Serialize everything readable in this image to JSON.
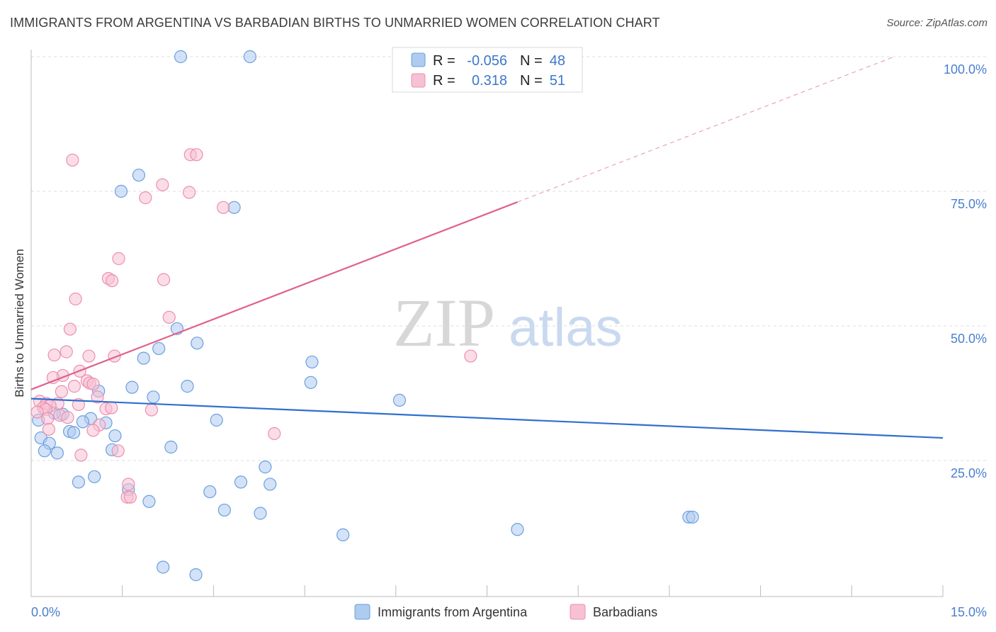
{
  "header": {
    "title": "IMMIGRANTS FROM ARGENTINA VS BARBADIAN BIRTHS TO UNMARRIED WOMEN CORRELATION CHART",
    "source": "Source: ZipAtlas.com"
  },
  "watermark": {
    "zip": "ZIP",
    "atlas": "atlas"
  },
  "colors": {
    "blue_fill": "#aecbf0",
    "blue_stroke": "#6a9fe0",
    "blue_line": "#2f6fcf",
    "pink_fill": "#f7c1d3",
    "pink_stroke": "#ec8fae",
    "pink_line": "#e0618d",
    "axis_text": "#4a7fcf"
  },
  "legend_box": {
    "rows": [
      {
        "r_label": "R =",
        "r_value": "-0.056",
        "n_label": "N =",
        "n_value": "48"
      },
      {
        "r_label": "R =",
        "r_value": "0.318",
        "n_label": "N =",
        "n_value": "51"
      }
    ]
  },
  "chart_data": {
    "type": "scatter",
    "title": "IMMIGRANTS FROM ARGENTINA VS BARBADIAN BIRTHS TO UNMARRIED WOMEN CORRELATION CHART",
    "xlabel": "",
    "ylabel": "Births to Unmarried Women",
    "xlim": [
      0,
      15
    ],
    "ylim": [
      0,
      100
    ],
    "x_tick_labels": [
      "0.0%",
      "15.0%"
    ],
    "y_ticks": [
      25,
      50,
      75,
      100
    ],
    "y_tick_labels": [
      "25.0%",
      "50.0%",
      "75.0%",
      "100.0%"
    ],
    "grid": true,
    "legend_position": "bottom",
    "series": [
      {
        "name": "Immigrants from Argentina",
        "r": -0.056,
        "n": 48,
        "trend": {
          "x0": 0,
          "y0": 36.5,
          "x1": 15,
          "y1": 29.2
        },
        "points": [
          {
            "x": 2.46,
            "y": 100
          },
          {
            "x": 3.6,
            "y": 100
          },
          {
            "x": 1.77,
            "y": 78
          },
          {
            "x": 1.48,
            "y": 75
          },
          {
            "x": 3.34,
            "y": 72
          },
          {
            "x": 2.4,
            "y": 49.5
          },
          {
            "x": 2.73,
            "y": 46.8
          },
          {
            "x": 2.1,
            "y": 45.8
          },
          {
            "x": 1.85,
            "y": 44
          },
          {
            "x": 4.62,
            "y": 43.3
          },
          {
            "x": 4.6,
            "y": 39.5
          },
          {
            "x": 2.57,
            "y": 38.8
          },
          {
            "x": 1.66,
            "y": 38.6
          },
          {
            "x": 1.11,
            "y": 37.9
          },
          {
            "x": 2.01,
            "y": 36.8
          },
          {
            "x": 6.06,
            "y": 36.2
          },
          {
            "x": 0.52,
            "y": 33.6
          },
          {
            "x": 0.98,
            "y": 32.8
          },
          {
            "x": 0.85,
            "y": 32.2
          },
          {
            "x": 1.23,
            "y": 32.0
          },
          {
            "x": 3.05,
            "y": 32.5
          },
          {
            "x": 0.63,
            "y": 30.4
          },
          {
            "x": 0.7,
            "y": 30.2
          },
          {
            "x": 0.16,
            "y": 29.2
          },
          {
            "x": 1.38,
            "y": 29.6
          },
          {
            "x": 0.3,
            "y": 28.2
          },
          {
            "x": 0.22,
            "y": 26.8
          },
          {
            "x": 0.43,
            "y": 26.4
          },
          {
            "x": 1.33,
            "y": 27.0
          },
          {
            "x": 2.3,
            "y": 27.5
          },
          {
            "x": 3.85,
            "y": 23.8
          },
          {
            "x": 1.04,
            "y": 22.0
          },
          {
            "x": 0.78,
            "y": 21.0
          },
          {
            "x": 3.45,
            "y": 21.0
          },
          {
            "x": 3.93,
            "y": 20.6
          },
          {
            "x": 1.6,
            "y": 19.6
          },
          {
            "x": 2.94,
            "y": 19.2
          },
          {
            "x": 1.94,
            "y": 17.4
          },
          {
            "x": 3.18,
            "y": 15.8
          },
          {
            "x": 3.77,
            "y": 15.2
          },
          {
            "x": 5.13,
            "y": 11.2
          },
          {
            "x": 8.0,
            "y": 12.2
          },
          {
            "x": 10.82,
            "y": 14.5
          },
          {
            "x": 10.88,
            "y": 14.5
          },
          {
            "x": 2.17,
            "y": 5.2
          },
          {
            "x": 2.71,
            "y": 3.8
          },
          {
            "x": 0.12,
            "y": 32.5
          },
          {
            "x": 0.38,
            "y": 33.8
          }
        ]
      },
      {
        "name": "Barbadians",
        "r": 0.318,
        "n": 51,
        "trend": {
          "x0": 0,
          "y0": 38.2,
          "x1": 8.0,
          "y1": 73.0,
          "dash_x1": 14.2,
          "dash_y1": 100
        },
        "points": [
          {
            "x": 2.62,
            "y": 81.8
          },
          {
            "x": 2.72,
            "y": 81.8
          },
          {
            "x": 0.68,
            "y": 80.8
          },
          {
            "x": 2.16,
            "y": 76.2
          },
          {
            "x": 2.6,
            "y": 74.8
          },
          {
            "x": 1.88,
            "y": 73.8
          },
          {
            "x": 3.16,
            "y": 72.0
          },
          {
            "x": 1.44,
            "y": 62.5
          },
          {
            "x": 1.27,
            "y": 58.8
          },
          {
            "x": 1.33,
            "y": 58.4
          },
          {
            "x": 2.18,
            "y": 58.6
          },
          {
            "x": 0.73,
            "y": 55.0
          },
          {
            "x": 2.27,
            "y": 51.6
          },
          {
            "x": 0.64,
            "y": 49.4
          },
          {
            "x": 0.58,
            "y": 45.2
          },
          {
            "x": 0.38,
            "y": 44.6
          },
          {
            "x": 0.95,
            "y": 44.4
          },
          {
            "x": 1.37,
            "y": 44.4
          },
          {
            "x": 7.23,
            "y": 44.4
          },
          {
            "x": 0.8,
            "y": 41.6
          },
          {
            "x": 0.52,
            "y": 40.8
          },
          {
            "x": 0.36,
            "y": 40.4
          },
          {
            "x": 0.92,
            "y": 39.8
          },
          {
            "x": 0.96,
            "y": 39.4
          },
          {
            "x": 1.02,
            "y": 39.2
          },
          {
            "x": 0.71,
            "y": 38.8
          },
          {
            "x": 0.5,
            "y": 37.8
          },
          {
            "x": 1.09,
            "y": 36.8
          },
          {
            "x": 0.14,
            "y": 36.0
          },
          {
            "x": 0.25,
            "y": 35.6
          },
          {
            "x": 0.44,
            "y": 35.6
          },
          {
            "x": 0.31,
            "y": 35.2
          },
          {
            "x": 0.78,
            "y": 35.4
          },
          {
            "x": 0.2,
            "y": 34.8
          },
          {
            "x": 0.24,
            "y": 34.5
          },
          {
            "x": 1.23,
            "y": 34.6
          },
          {
            "x": 1.32,
            "y": 34.8
          },
          {
            "x": 1.98,
            "y": 34.4
          },
          {
            "x": 0.1,
            "y": 34.0
          },
          {
            "x": 0.47,
            "y": 33.4
          },
          {
            "x": 0.6,
            "y": 33.0
          },
          {
            "x": 0.27,
            "y": 32.8
          },
          {
            "x": 1.12,
            "y": 31.6
          },
          {
            "x": 0.29,
            "y": 30.8
          },
          {
            "x": 1.02,
            "y": 30.6
          },
          {
            "x": 4.0,
            "y": 30.0
          },
          {
            "x": 1.43,
            "y": 26.8
          },
          {
            "x": 0.82,
            "y": 26.0
          },
          {
            "x": 1.6,
            "y": 20.6
          },
          {
            "x": 1.58,
            "y": 18.2
          },
          {
            "x": 1.63,
            "y": 18.2
          }
        ]
      }
    ]
  }
}
